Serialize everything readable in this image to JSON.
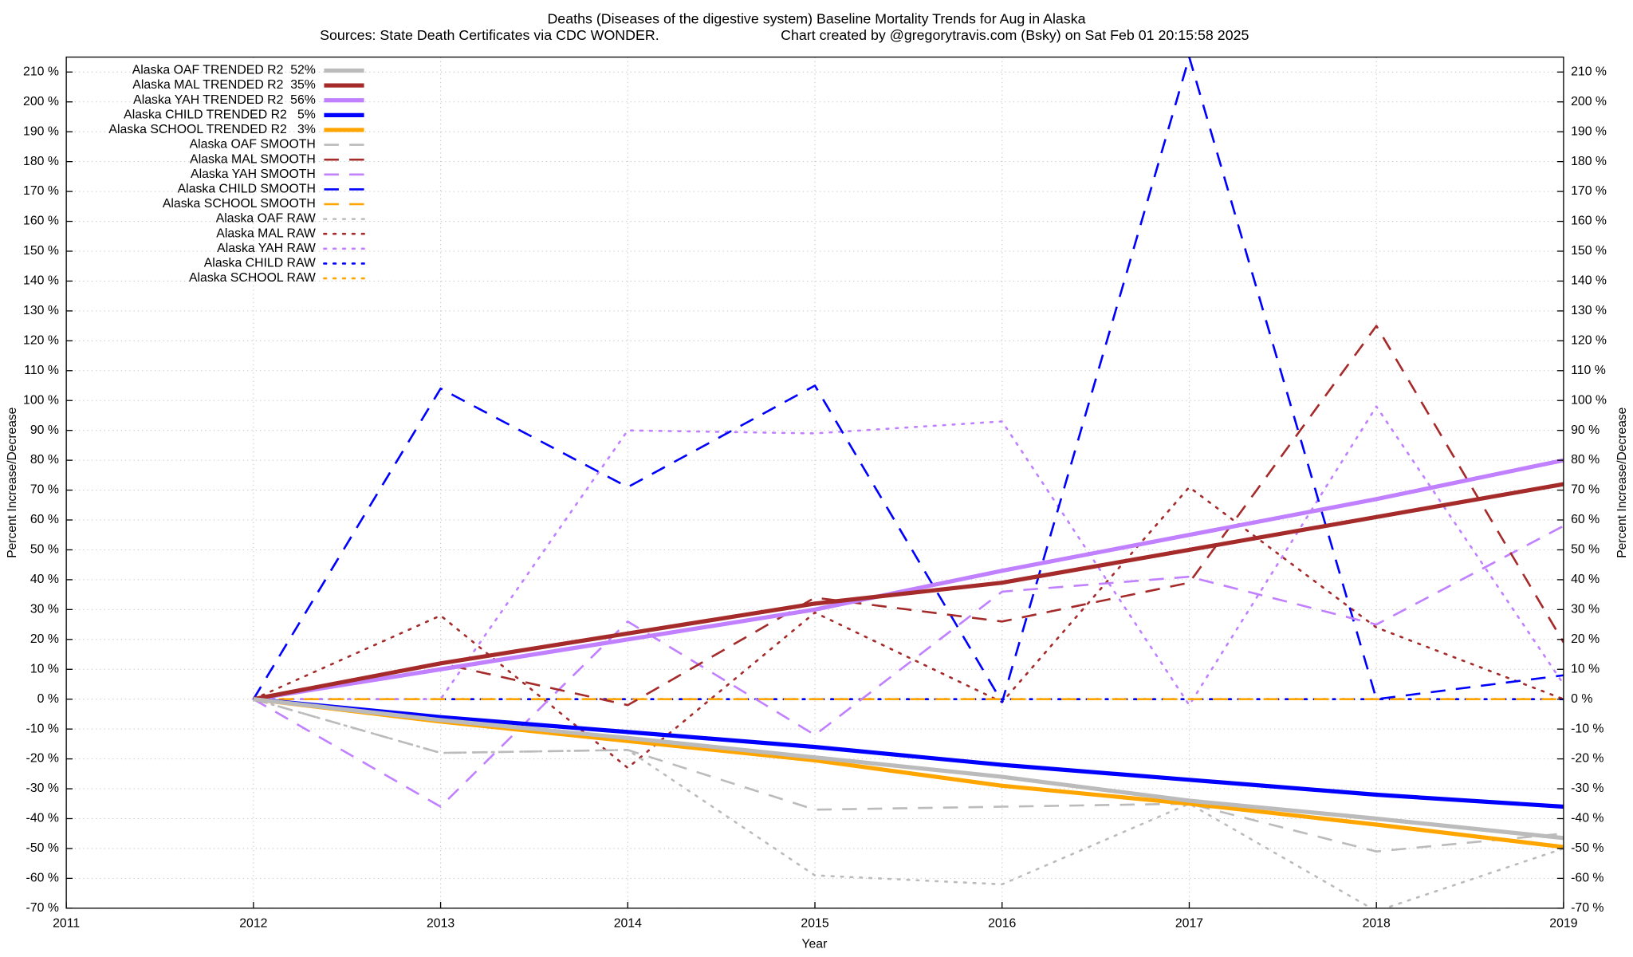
{
  "chart_data": {
    "type": "line",
    "title": "Deaths (Diseases of the digestive system)  Baseline Mortality Trends for Aug in Alaska",
    "subtitle": "Sources: State Death Certificates via CDC WONDER.",
    "credit": "Chart created by @gregorytravis.com (Bsky) on Sat Feb 01 20:15:58 2025",
    "xlabel": "Year",
    "ylabel": "Percent Increase/Decrease",
    "y2label": "Percent Increase/Decrease",
    "x": [
      2012,
      2013,
      2014,
      2015,
      2016,
      2017,
      2018,
      2019
    ],
    "xlim": [
      2011,
      2019
    ],
    "xticks": [
      2011,
      2012,
      2013,
      2014,
      2015,
      2016,
      2017,
      2018,
      2019
    ],
    "ylim": [
      -70,
      215
    ],
    "yticks": [
      {
        "value": -70,
        "label": "-70 %"
      },
      {
        "value": -60,
        "label": "-60 %"
      },
      {
        "value": -50,
        "label": "-50 %"
      },
      {
        "value": -40,
        "label": "-40 %"
      },
      {
        "value": -30,
        "label": "-30 %"
      },
      {
        "value": -20,
        "label": "-20 %"
      },
      {
        "value": -10,
        "label": "-10 %"
      },
      {
        "value": 0,
        "label": "0 %"
      },
      {
        "value": 10,
        "label": "10 %"
      },
      {
        "value": 20,
        "label": "20 %"
      },
      {
        "value": 30,
        "label": "30 %"
      },
      {
        "value": 40,
        "label": "40 %"
      },
      {
        "value": 50,
        "label": "50 %"
      },
      {
        "value": 60,
        "label": "60 %"
      },
      {
        "value": 70,
        "label": "70 %"
      },
      {
        "value": 80,
        "label": "80 %"
      },
      {
        "value": 90,
        "label": "90 %"
      },
      {
        "value": 100,
        "label": "100 %"
      },
      {
        "value": 110,
        "label": "110 %"
      },
      {
        "value": 120,
        "label": "120 %"
      },
      {
        "value": 130,
        "label": "130 %"
      },
      {
        "value": 140,
        "label": "140 %"
      },
      {
        "value": 150,
        "label": "150 %"
      },
      {
        "value": 160,
        "label": "160 %"
      },
      {
        "value": 170,
        "label": "170 %"
      },
      {
        "value": 180,
        "label": "180 %"
      },
      {
        "value": 190,
        "label": "190 %"
      },
      {
        "value": 200,
        "label": "200 %"
      },
      {
        "value": 210,
        "label": "210 %"
      }
    ],
    "grid": true,
    "legend": "upper left",
    "series": [
      {
        "name": "Alaska OAF TRENDED R2  52%",
        "color": "#bbbbbb",
        "dash": "solid",
        "values": [
          0,
          -7,
          -13,
          -19.5,
          -26,
          -34,
          -40,
          -46.5
        ]
      },
      {
        "name": "Alaska MAL TRENDED R2  35%",
        "color": "#a52a2a",
        "dash": "solid",
        "values": [
          0,
          12,
          22,
          32,
          39,
          50,
          61,
          72
        ]
      },
      {
        "name": "Alaska YAH TRENDED R2  56%",
        "color": "#c080ff",
        "dash": "solid",
        "values": [
          0,
          10,
          20,
          30,
          43,
          55,
          67,
          80
        ]
      },
      {
        "name": "Alaska CHILD TRENDED R2   5%",
        "color": "#0000ff",
        "dash": "solid",
        "values": [
          0,
          -6,
          -11,
          -16,
          -22,
          -27,
          -32,
          -36
        ]
      },
      {
        "name": "Alaska SCHOOL TRENDED R2   3%",
        "color": "#ffa500",
        "dash": "solid",
        "values": [
          0,
          -7.5,
          -14,
          -20.5,
          -29,
          -35,
          -42,
          -49.5
        ]
      },
      {
        "name": "Alaska OAF SMOOTH",
        "color": "#bbbbbb",
        "dash": "dashed",
        "values": [
          0,
          -18,
          -17,
          -37,
          -36,
          -35,
          -51,
          -45
        ]
      },
      {
        "name": "Alaska MAL SMOOTH",
        "color": "#a52a2a",
        "dash": "dashed",
        "values": [
          0,
          12,
          -2,
          34,
          26,
          39,
          125,
          19
        ]
      },
      {
        "name": "Alaska YAH SMOOTH",
        "color": "#c080ff",
        "dash": "dashed",
        "values": [
          0,
          -36,
          26,
          -12,
          36,
          41,
          25,
          58
        ]
      },
      {
        "name": "Alaska CHILD SMOOTH",
        "color": "#0000ff",
        "dash": "dashed",
        "values": [
          0,
          104,
          71,
          105,
          -1,
          215,
          0,
          8
        ]
      },
      {
        "name": "Alaska SCHOOL SMOOTH",
        "color": "#ffa500",
        "dash": "dashed",
        "values": [
          0,
          0,
          0,
          0,
          0,
          0,
          0,
          0
        ]
      },
      {
        "name": "Alaska OAF RAW",
        "color": "#bbbbbb",
        "dash": "dotted",
        "values": [
          0,
          -18,
          -17,
          -59,
          -62,
          -35,
          -71,
          -50
        ]
      },
      {
        "name": "Alaska MAL RAW",
        "color": "#a52a2a",
        "dash": "dotted",
        "values": [
          0,
          28,
          -23,
          29,
          -1,
          71,
          24,
          0
        ]
      },
      {
        "name": "Alaska YAH RAW",
        "color": "#c080ff",
        "dash": "dotted",
        "values": [
          0,
          0,
          90,
          89,
          93,
          -2,
          98,
          5
        ]
      },
      {
        "name": "Alaska CHILD RAW",
        "color": "#0000ff",
        "dash": "dotted",
        "values": [
          0,
          0,
          0,
          0,
          0,
          0,
          0,
          0
        ]
      },
      {
        "name": "Alaska SCHOOL RAW",
        "color": "#ffa500",
        "dash": "dotted",
        "values": [
          0,
          0,
          0,
          0,
          0,
          0,
          0,
          0
        ]
      }
    ]
  }
}
